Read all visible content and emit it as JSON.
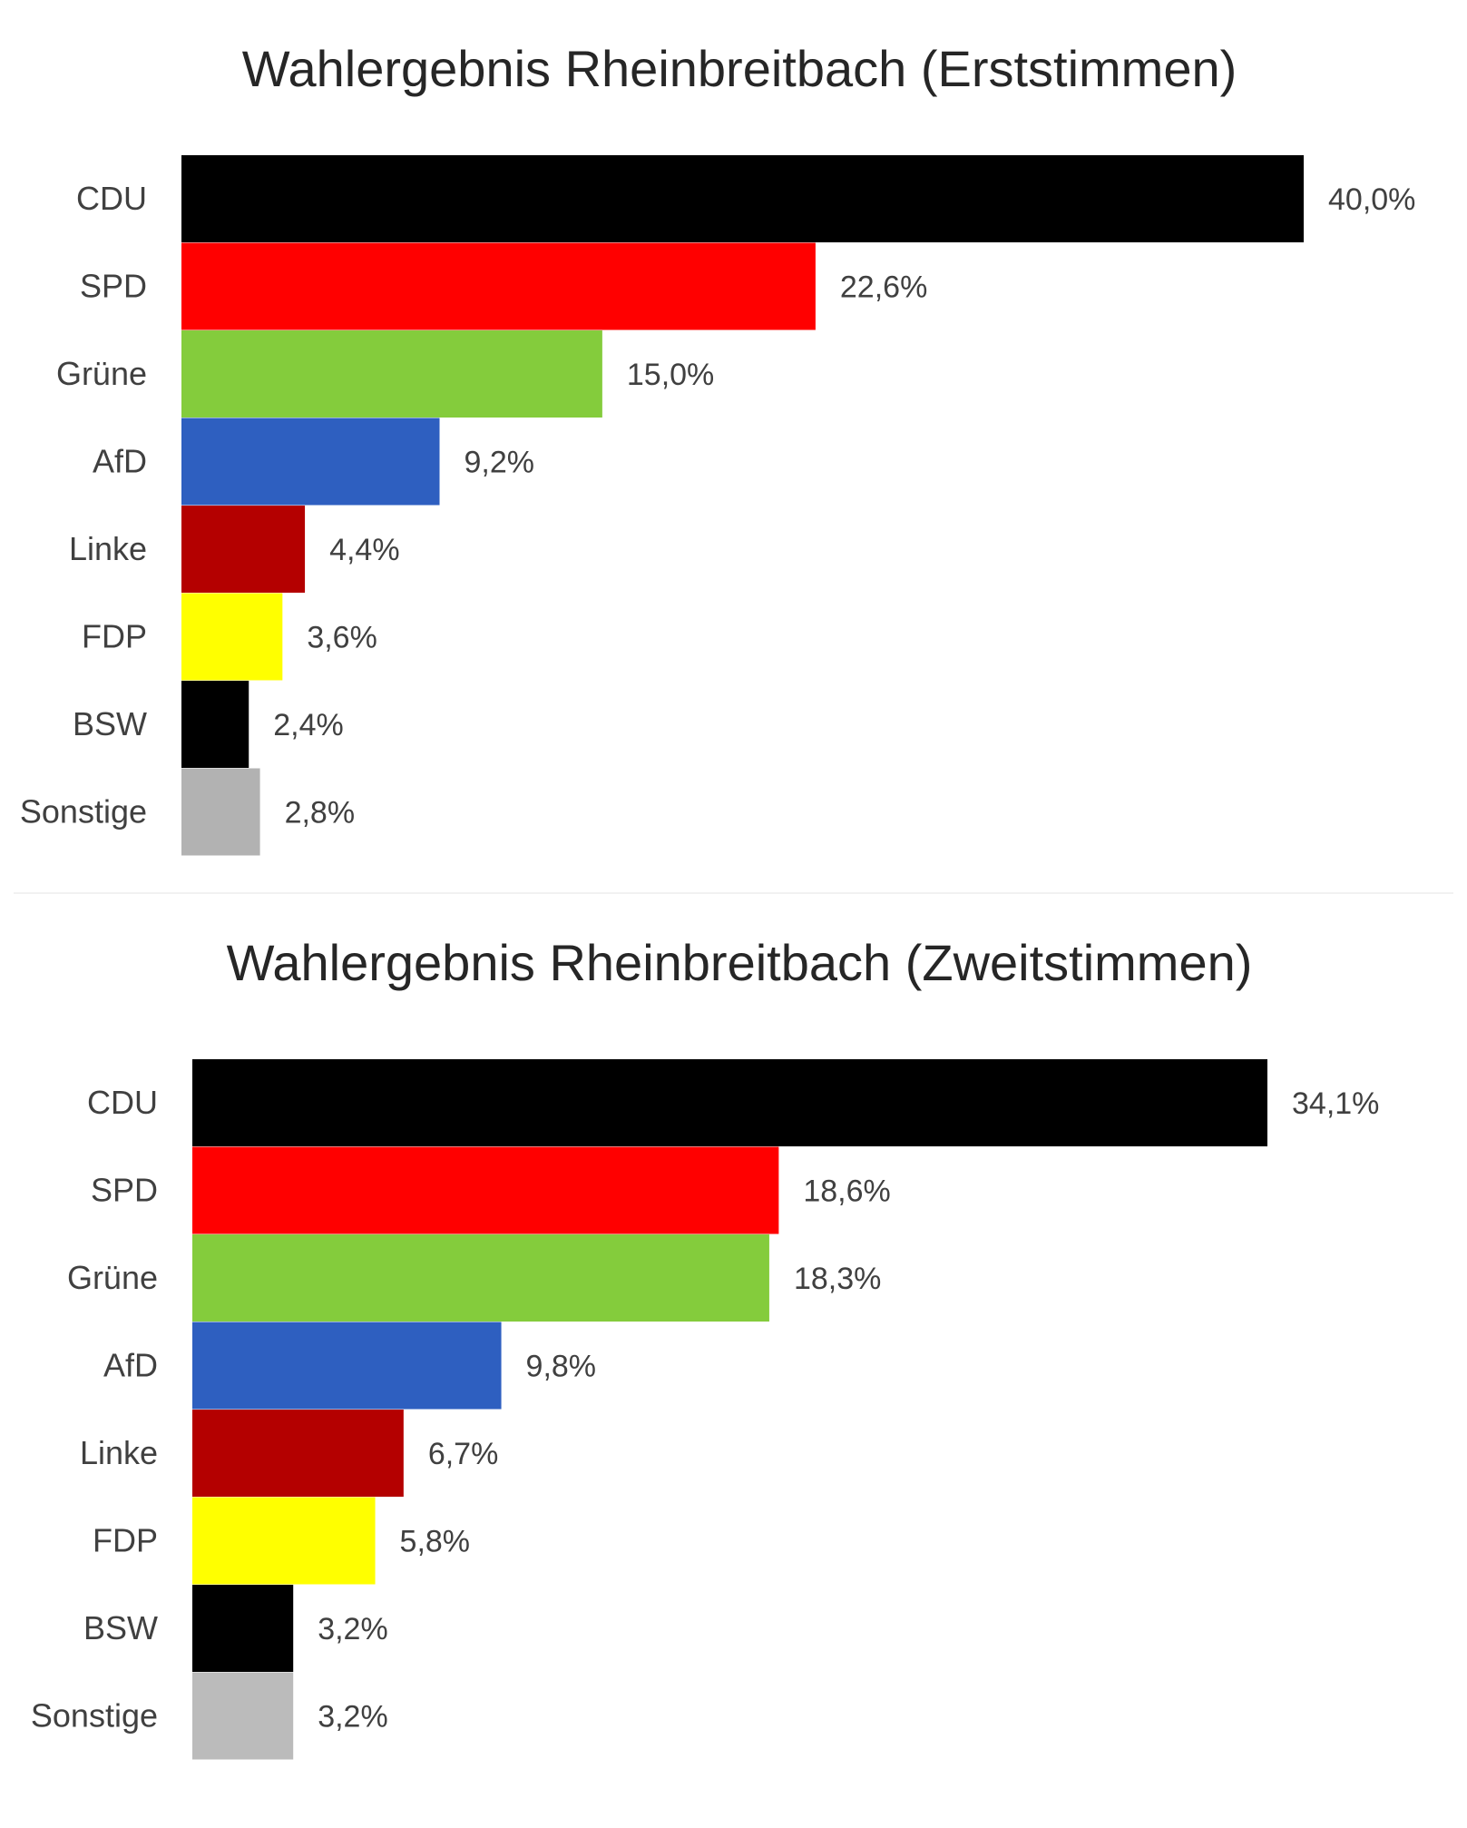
{
  "chart_data": [
    {
      "type": "bar",
      "orientation": "horizontal",
      "title": "Wahlergebnis Rheinbreitbach (Erststimmen)",
      "xlabel": "",
      "ylabel": "",
      "grid": false,
      "legend": "none",
      "categories": [
        "CDU",
        "SPD",
        "Grüne",
        "AfD",
        "Linke",
        "FDP",
        "BSW",
        "Sonstige"
      ],
      "values": [
        40.0,
        22.6,
        15.0,
        9.2,
        4.4,
        3.6,
        2.4,
        2.8
      ],
      "value_labels": [
        "40,0%",
        "22,6%",
        "15,0%",
        "9,2%",
        "4,4%",
        "3,6%",
        "2,4%",
        "2,8%"
      ],
      "colors": [
        "#000000",
        "#ff0000",
        "#84cc3c",
        "#2e5fc0",
        "#b40000",
        "#ffff00",
        "#000000",
        "#b2b2b2"
      ],
      "xlim": [
        0,
        40.0
      ]
    },
    {
      "type": "bar",
      "orientation": "horizontal",
      "title": "Wahlergebnis Rheinbreitbach (Zweitstimmen)",
      "xlabel": "",
      "ylabel": "",
      "grid": false,
      "legend": "none",
      "categories": [
        "CDU",
        "SPD",
        "Grüne",
        "AfD",
        "Linke",
        "FDP",
        "BSW",
        "Sonstige"
      ],
      "values": [
        34.1,
        18.6,
        18.3,
        9.8,
        6.7,
        5.8,
        3.2,
        3.2
      ],
      "value_labels": [
        "34,1%",
        "18,6%",
        "18,3%",
        "9,8%",
        "6,7%",
        "5,8%",
        "3,2%",
        "3,2%"
      ],
      "colors": [
        "#000000",
        "#ff0000",
        "#84cc3c",
        "#2e5fc0",
        "#b40000",
        "#ffff00",
        "#000000",
        "#bbbbbb"
      ],
      "xlim": [
        0,
        34.1
      ]
    }
  ]
}
